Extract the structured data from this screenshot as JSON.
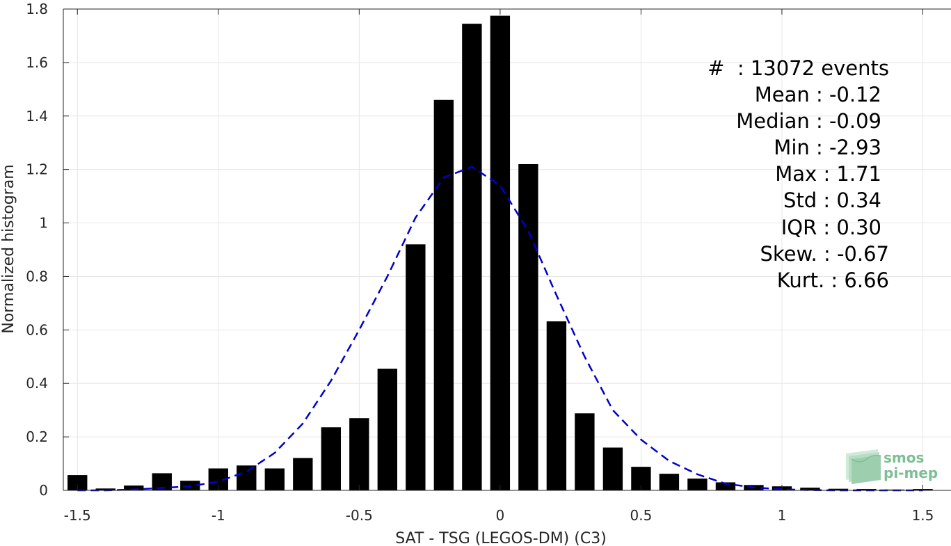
{
  "chart_data": {
    "type": "bar",
    "title": "",
    "xlabel": "SAT - TSG (LEGOS-DM) (C3)",
    "ylabel": "Normalized histogram",
    "xlim": [
      -1.55,
      1.6
    ],
    "ylim": [
      0,
      1.8
    ],
    "xticks": [
      -1.5,
      -1,
      -0.5,
      0,
      0.5,
      1,
      1.5
    ],
    "xtick_labels": [
      "-1.5",
      "-1",
      "-0.5",
      "0",
      "0.5",
      "1",
      "1.5"
    ],
    "yticks": [
      0,
      0.2,
      0.4,
      0.6,
      0.8,
      1,
      1.2,
      1.4,
      1.6,
      1.8
    ],
    "ytick_labels": [
      "0",
      "0.2",
      "0.4",
      "0.6",
      "0.8",
      "1",
      "1.2",
      "1.4",
      "1.6",
      "1.8"
    ],
    "grid": true,
    "bar_color": "#000000",
    "bar_width": 0.07,
    "bars": {
      "x": [
        -1.5,
        -1.4,
        -1.3,
        -1.2,
        -1.1,
        -1.0,
        -0.9,
        -0.8,
        -0.7,
        -0.6,
        -0.5,
        -0.4,
        -0.3,
        -0.2,
        -0.1,
        0.0,
        0.1,
        0.2,
        0.3,
        0.4,
        0.5,
        0.6,
        0.7,
        0.8,
        0.9,
        1.0,
        1.1,
        1.2,
        1.3,
        1.4,
        1.5
      ],
      "values": [
        0.057,
        0.007,
        0.018,
        0.064,
        0.036,
        0.082,
        0.093,
        0.082,
        0.121,
        0.236,
        0.27,
        0.455,
        0.92,
        1.46,
        1.745,
        1.775,
        1.22,
        0.632,
        0.288,
        0.16,
        0.088,
        0.062,
        0.044,
        0.03,
        0.02,
        0.015,
        0.01,
        0.006,
        0.005,
        0.003,
        0.005
      ]
    },
    "fit": {
      "name": "",
      "color": "#0000cc",
      "style": "dashed",
      "x": [
        -1.5,
        -1.4,
        -1.3,
        -1.2,
        -1.1,
        -1.0,
        -0.9,
        -0.8,
        -0.7,
        -0.6,
        -0.5,
        -0.4,
        -0.3,
        -0.2,
        -0.1,
        0.0,
        0.1,
        0.2,
        0.3,
        0.4,
        0.5,
        0.6,
        0.7,
        0.8,
        0.9,
        1.0,
        1.1,
        1.2,
        1.3,
        1.4,
        1.5
      ],
      "values": [
        0.0,
        0.0,
        0.003,
        0.009,
        0.015,
        0.033,
        0.07,
        0.14,
        0.25,
        0.41,
        0.6,
        0.8,
        1.02,
        1.17,
        1.21,
        1.14,
        0.97,
        0.73,
        0.5,
        0.3,
        0.19,
        0.11,
        0.06,
        0.025,
        0.011,
        0.004,
        0.001,
        0.0,
        0.0,
        0.0,
        0.0
      ]
    }
  },
  "stats": {
    "count_line": "#  : 13072 events",
    "mean": "Mean : -0.12",
    "median": "Median : -0.09",
    "min": "Min : -2.93",
    "max": "Max : 1.71",
    "std": "Std : 0.34",
    "iqr": "IQR : 0.30",
    "skew": "Skew. : -0.67",
    "kurt": "Kurt. : 6.66"
  },
  "logo": {
    "line1": "smos",
    "line2": "pi-mep"
  },
  "colors": {
    "axis": "#262626",
    "grid": "#e6e6e6",
    "logo": "#7dbf94"
  }
}
